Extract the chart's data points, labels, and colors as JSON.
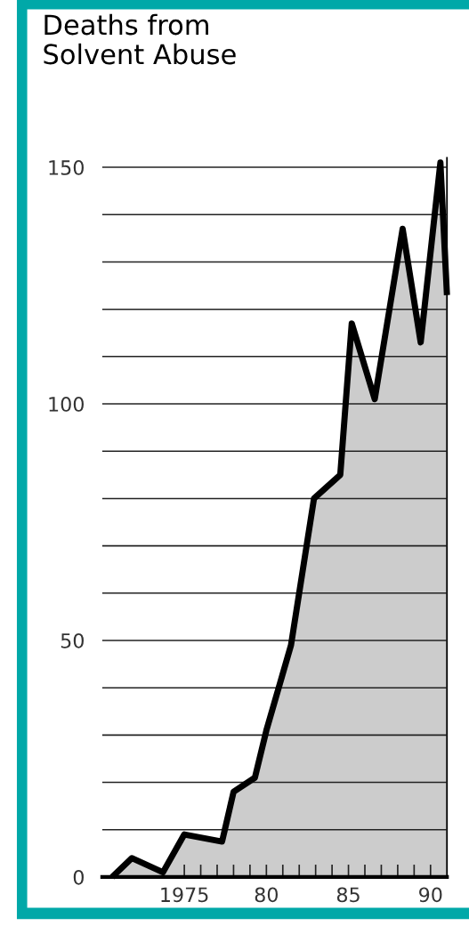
{
  "chart_data": {
    "type": "area",
    "title": "Deaths from\nSolvent Abuse",
    "x": [
      1970.6,
      1971.8,
      1973.7,
      1975,
      1977.3,
      1978,
      1979.3,
      1980,
      1981.5,
      1982.9,
      1984.5,
      1985.2,
      1986.6,
      1988.3,
      1989.4,
      1990.6,
      1991
    ],
    "series": [
      {
        "color": "#cccccc",
        "values": [
          0,
          4,
          1,
          9,
          7.5,
          18,
          21,
          31,
          49,
          80,
          85,
          117,
          101,
          137,
          113,
          151,
          123
        ]
      }
    ],
    "xlim": [
      1970,
      1991
    ],
    "xticks": [
      {
        "value": 1975,
        "label": "1975"
      },
      {
        "value": 1976,
        "label": null
      },
      {
        "value": 1977,
        "label": null
      },
      {
        "value": 1978,
        "label": null
      },
      {
        "value": 1979,
        "label": null
      },
      {
        "value": 1980,
        "label": "80"
      },
      {
        "value": 1981,
        "label": null
      },
      {
        "value": 1982,
        "label": null
      },
      {
        "value": 1983,
        "label": null
      },
      {
        "value": 1984,
        "label": null
      },
      {
        "value": 1985,
        "label": "85"
      },
      {
        "value": 1986,
        "label": null
      },
      {
        "value": 1987,
        "label": null
      },
      {
        "value": 1988,
        "label": null
      },
      {
        "value": 1989,
        "label": null
      },
      {
        "value": 1990,
        "label": "90"
      }
    ],
    "ylim": [
      0,
      152
    ],
    "yticks": [
      0,
      {
        "value": 10,
        "label": null
      },
      {
        "value": 20,
        "label": null
      },
      {
        "value": 30,
        "label": null
      },
      {
        "value": 40,
        "label": null
      },
      50,
      {
        "value": 60,
        "label": null
      },
      {
        "value": 70,
        "label": null
      },
      {
        "value": 80,
        "label": null
      },
      {
        "value": 90,
        "label": null
      },
      100,
      {
        "value": 110,
        "label": null
      },
      {
        "value": 120,
        "label": null
      },
      {
        "value": 130,
        "label": null
      },
      {
        "value": 140,
        "label": null
      },
      150
    ],
    "grid": "y",
    "legend": false,
    "marker": "none",
    "line_style": "solid"
  }
}
